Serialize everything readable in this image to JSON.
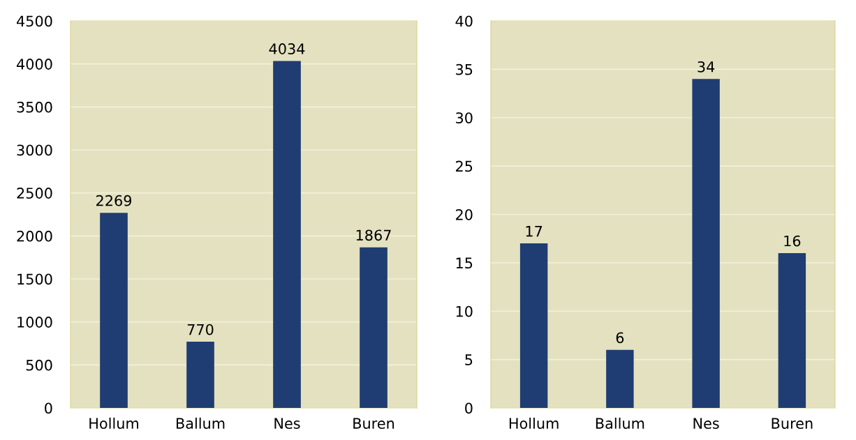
{
  "chart_data": [
    {
      "type": "bar",
      "categories": [
        "Hollum",
        "Ballum",
        "Nes",
        "Buren"
      ],
      "values": [
        2269,
        770,
        4034,
        1867
      ],
      "color": "#1f3d72",
      "ylim": [
        0,
        4500
      ],
      "yticks": [
        0,
        500,
        1000,
        1500,
        2000,
        2500,
        3000,
        3500,
        4000,
        4500
      ],
      "grid": "y",
      "data_labels": true
    },
    {
      "type": "bar",
      "categories": [
        "Hollum",
        "Ballum",
        "Nes",
        "Buren"
      ],
      "values": [
        17,
        6,
        34,
        16
      ],
      "color": "#1f3d72",
      "ylim": [
        0,
        40
      ],
      "yticks": [
        0,
        5,
        10,
        15,
        20,
        25,
        30,
        35,
        40
      ],
      "grid": "y",
      "data_labels": true
    }
  ]
}
